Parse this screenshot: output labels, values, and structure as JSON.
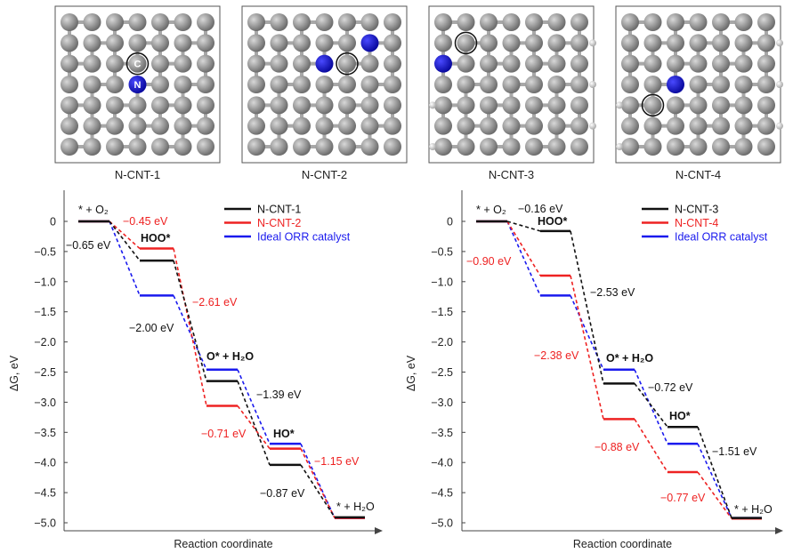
{
  "structures": [
    {
      "label": "N-CNT-1",
      "atom_labels": [
        "C",
        "N"
      ]
    },
    {
      "label": "N-CNT-2",
      "atom_labels": []
    },
    {
      "label": "N-CNT-3",
      "atom_labels": []
    },
    {
      "label": "N-CNT-4",
      "atom_labels": []
    }
  ],
  "colors": {
    "black": "#111111",
    "red": "#ee2222",
    "blue": "#1a1aee",
    "carbon": "#8a8a8a",
    "nitrogen": "#1515c8",
    "hydrogen": "#dddddd"
  },
  "chart_data": [
    {
      "type": "line",
      "subtype": "free-energy step diagram",
      "xlabel": "Reaction coordinate",
      "ylabel": "ΔG, eV",
      "ylim": [
        -5.0,
        0
      ],
      "yticks": [
        "0",
        "-0.5",
        "-1.0",
        "-1.5",
        "-2.0",
        "-2.5",
        "-3.0",
        "-3.5",
        "-4.0",
        "-4.5",
        "-5.0"
      ],
      "grid": false,
      "legend_position": "top-right",
      "states": [
        "* + O₂",
        "HOO*",
        "O* + H₂O",
        "HO*",
        "* + H₂O"
      ],
      "series": [
        {
          "name": "N-CNT-1",
          "color": "#111111",
          "values": [
            0,
            -0.65,
            -2.65,
            -4.04,
            -4.91
          ]
        },
        {
          "name": "N-CNT-2",
          "color": "#ee2222",
          "values": [
            0,
            -0.45,
            -3.06,
            -3.77,
            -4.92
          ]
        },
        {
          "name": "Ideal ORR catalyst",
          "color": "#1a1aee",
          "values": [
            0,
            -1.23,
            -2.46,
            -3.69,
            -4.92
          ]
        }
      ],
      "annotations": [
        {
          "text": "−0.45 eV",
          "color": "#ee2222"
        },
        {
          "text": "−0.65 eV",
          "color": "#111111"
        },
        {
          "text": "−2.61 eV",
          "color": "#ee2222"
        },
        {
          "text": "−2.00 eV",
          "color": "#111111"
        },
        {
          "text": "−1.39 eV",
          "color": "#111111"
        },
        {
          "text": "−0.71 eV",
          "color": "#ee2222"
        },
        {
          "text": "−1.15 eV",
          "color": "#ee2222"
        },
        {
          "text": "−0.87 eV",
          "color": "#111111"
        }
      ]
    },
    {
      "type": "line",
      "subtype": "free-energy step diagram",
      "xlabel": "Reaction coordinate",
      "ylabel": "ΔG, eV",
      "ylim": [
        -5.0,
        0
      ],
      "yticks": [
        "0",
        "-0.5",
        "-1.0",
        "-1.5",
        "-2.0",
        "-2.5",
        "-3.0",
        "-3.5",
        "-4.0",
        "-4.5",
        "-5.0"
      ],
      "grid": false,
      "legend_position": "top-right",
      "states": [
        "* + O₂",
        "HOO*",
        "O* + H₂O",
        "HO*",
        "* + H₂O"
      ],
      "series": [
        {
          "name": "N-CNT-3",
          "color": "#111111",
          "values": [
            0,
            -0.16,
            -2.69,
            -3.41,
            -4.92
          ]
        },
        {
          "name": "N-CNT-4",
          "color": "#ee2222",
          "values": [
            0,
            -0.9,
            -3.28,
            -4.16,
            -4.93
          ]
        },
        {
          "name": "Ideal ORR catalyst",
          "color": "#1a1aee",
          "values": [
            0,
            -1.23,
            -2.46,
            -3.69,
            -4.92
          ]
        }
      ],
      "annotations": [
        {
          "text": "−0.16 eV",
          "color": "#111111"
        },
        {
          "text": "−0.90 eV",
          "color": "#ee2222"
        },
        {
          "text": "−2.53 eV",
          "color": "#111111"
        },
        {
          "text": "−2.38 eV",
          "color": "#ee2222"
        },
        {
          "text": "−0.72 eV",
          "color": "#111111"
        },
        {
          "text": "−0.88 eV",
          "color": "#ee2222"
        },
        {
          "text": "−1.51 eV",
          "color": "#111111"
        },
        {
          "text": "−0.77 eV",
          "color": "#ee2222"
        }
      ]
    }
  ]
}
